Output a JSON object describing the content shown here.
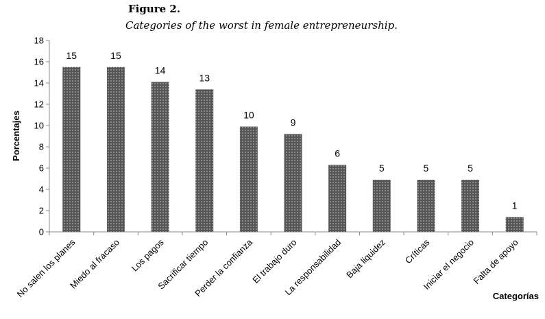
{
  "figure": {
    "label": "Figure 2.",
    "caption": "Categories of the worst in female entrepreneurship."
  },
  "chart_data": {
    "type": "bar",
    "xlabel": "Categorías",
    "ylabel": "Porcentajes",
    "ylim": [
      0,
      18
    ],
    "yticks": [
      0,
      2,
      4,
      6,
      8,
      10,
      12,
      14,
      16,
      18
    ],
    "grid": false,
    "categories": [
      "No salen los planes",
      "Miedo al fracaso",
      "Los pagos",
      "Sacrificar tiempo",
      "Perder la confianza",
      "El trabajo duro",
      "La responsabilidad",
      "Baja liquidez",
      "Críticas",
      "Iniciar el negocio",
      "Falta de apoyo"
    ],
    "values": [
      15.5,
      15.5,
      14.1,
      13.4,
      9.9,
      9.2,
      6.3,
      4.9,
      4.9,
      4.9,
      1.4
    ],
    "data_labels": [
      "15",
      "15",
      "14",
      "13",
      "10",
      "9",
      "6",
      "5",
      "5",
      "5",
      "1"
    ],
    "colors": {
      "bar_fill": "#555555",
      "bar_dots": "#dddddd",
      "axis": "#888888"
    }
  }
}
